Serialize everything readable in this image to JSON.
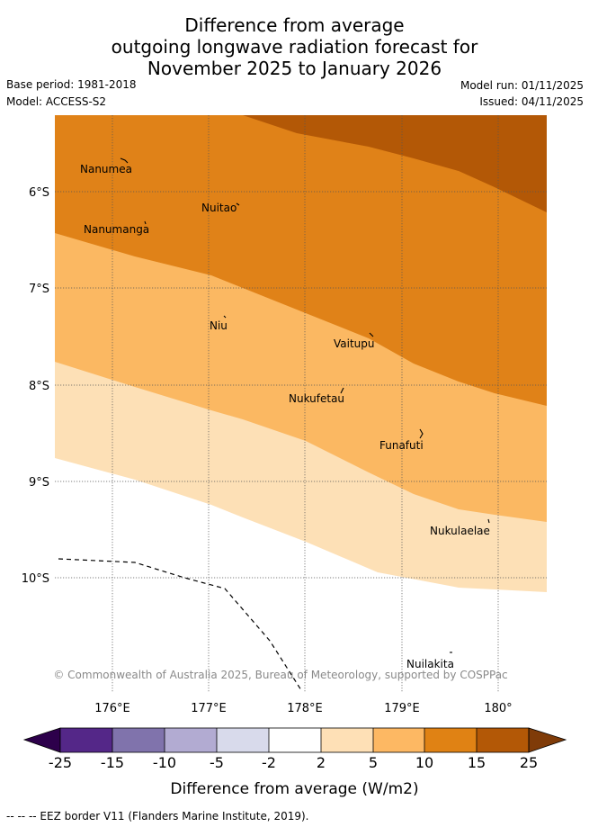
{
  "title": {
    "line1": "Difference from average",
    "line2": "outgoing longwave radiation forecast for",
    "line3": "November 2025 to January 2026"
  },
  "meta": {
    "base_period": "Base period: 1981-2018",
    "model": "Model: ACCESS-S2",
    "model_run": "Model run: 01/11/2025",
    "issued": "Issued: 04/11/2025"
  },
  "map": {
    "lat_ticks": [
      "6°S",
      "7°S",
      "8°S",
      "9°S",
      "10°S"
    ],
    "lon_ticks": [
      "176°E",
      "177°E",
      "178°E",
      "179°E",
      "180°"
    ],
    "places": [
      "Nanumea",
      "Nuitao",
      "Nanumanga",
      "Niu",
      "Vaitupu",
      "Nukufetau",
      "Funafuti",
      "Nukulaelae",
      "Nuilakita"
    ],
    "copyright": "© Commonwealth of Australia 2025, Bureau of Meteorology, supported by COSPPac",
    "zone_colors": {
      "2_to_5": "#fde0b6",
      "5_to_10": "#fbb862",
      "10_to_15": "#e08218",
      "15_to_25": "#b35806"
    }
  },
  "colorbar": {
    "ticks": [
      "-25",
      "-15",
      "-10",
      "-5",
      "-2",
      "2",
      "5",
      "10",
      "15",
      "25"
    ],
    "colors": [
      "#2d004b",
      "#542788",
      "#8073ac",
      "#b2abd2",
      "#d8daeb",
      "#ffffff",
      "#fee0b6",
      "#fdb863",
      "#e08214",
      "#b35806",
      "#7f3b08"
    ],
    "label": "Difference from average (W/m2)"
  },
  "footer": {
    "eez_legend": "-- -- -- EEZ border V11 (Flanders Marine Institute, 2019)."
  }
}
